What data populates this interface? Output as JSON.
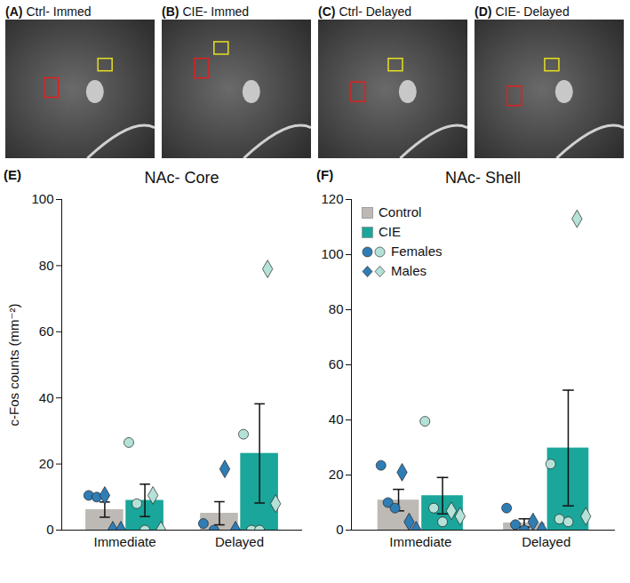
{
  "image_panels": [
    {
      "letter": "(A)",
      "title": "Ctrl- Immed"
    },
    {
      "letter": "(B)",
      "title": "CIE- Immed"
    },
    {
      "letter": "(C)",
      "title": "Ctrl- Delayed"
    },
    {
      "letter": "(D)",
      "title": "CIE- Delayed"
    }
  ],
  "chart_data": [
    {
      "type": "bar",
      "letter": "(E)",
      "title": "NAc- Core",
      "ylabel": "c-Fos counts (mm⁻²)",
      "categories": [
        "Immediate",
        "Delayed"
      ],
      "ylim": [
        0,
        100
      ],
      "yticks": [
        0,
        20,
        40,
        60,
        80,
        100
      ],
      "series": [
        {
          "name": "Control",
          "color": "#bdb9b4",
          "values": [
            6.2,
            5.1
          ],
          "errors": [
            2.3,
            3.5
          ],
          "points": [
            {
              "name": "Females",
              "marker": "circle",
              "color": "#2f7db5",
              "values": [
                [
                  10.5,
                  10
                ],
                [
                  2,
                  0
                ]
              ]
            },
            {
              "name": "Males",
              "marker": "diamond",
              "color": "#2f7db5",
              "values": [
                [
                  10.5,
                  0,
                  0
                ],
                [
                  18.5,
                  0
                ]
              ]
            }
          ]
        },
        {
          "name": "CIE",
          "color": "#1aa69a",
          "values": [
            9,
            23.2
          ],
          "errors": [
            4.9,
            15
          ],
          "points": [
            {
              "name": "Females",
              "marker": "circle",
              "color": "#b5e2d8",
              "values": [
                [
                  26.5,
                  8,
                  0
                ],
                [
                  29,
                  0,
                  0
                ]
              ]
            },
            {
              "name": "Males",
              "marker": "diamond",
              "color": "#b5e2d8",
              "values": [
                [
                  10.5,
                  0
                ],
                [
                  79,
                  8
                ]
              ]
            }
          ]
        }
      ]
    },
    {
      "type": "bar",
      "letter": "(F)",
      "title": "NAc- Shell",
      "categories": [
        "Immediate",
        "Delayed"
      ],
      "ylim": [
        0,
        120
      ],
      "yticks": [
        0,
        20,
        40,
        60,
        80,
        100,
        120
      ],
      "legend": "top-left",
      "series": [
        {
          "name": "Control",
          "color": "#bdb9b4",
          "values": [
            10.9,
            2.6
          ],
          "errors": [
            3.9,
            1.5
          ],
          "points": [
            {
              "name": "Females",
              "marker": "circle",
              "color": "#2f7db5",
              "values": [
                [
                  23.5,
                  10,
                  8
                ],
                [
                  8,
                  2,
                  0
                ]
              ]
            },
            {
              "name": "Males",
              "marker": "diamond",
              "color": "#2f7db5",
              "values": [
                [
                  21,
                  3,
                  0
                ],
                [
                  3,
                  0
                ]
              ]
            }
          ]
        },
        {
          "name": "CIE",
          "color": "#1aa69a",
          "values": [
            12.5,
            29.8
          ],
          "errors": [
            6.6,
            21
          ],
          "points": [
            {
              "name": "Females",
              "marker": "circle",
              "color": "#b5e2d8",
              "values": [
                [
                  39.5,
                  8,
                  3
                ],
                [
                  24,
                  4,
                  3
                ]
              ]
            },
            {
              "name": "Males",
              "marker": "diamond",
              "color": "#b5e2d8",
              "values": [
                [
                  7,
                  5
                ],
                [
                  113,
                  5
                ]
              ]
            }
          ]
        }
      ]
    }
  ]
}
